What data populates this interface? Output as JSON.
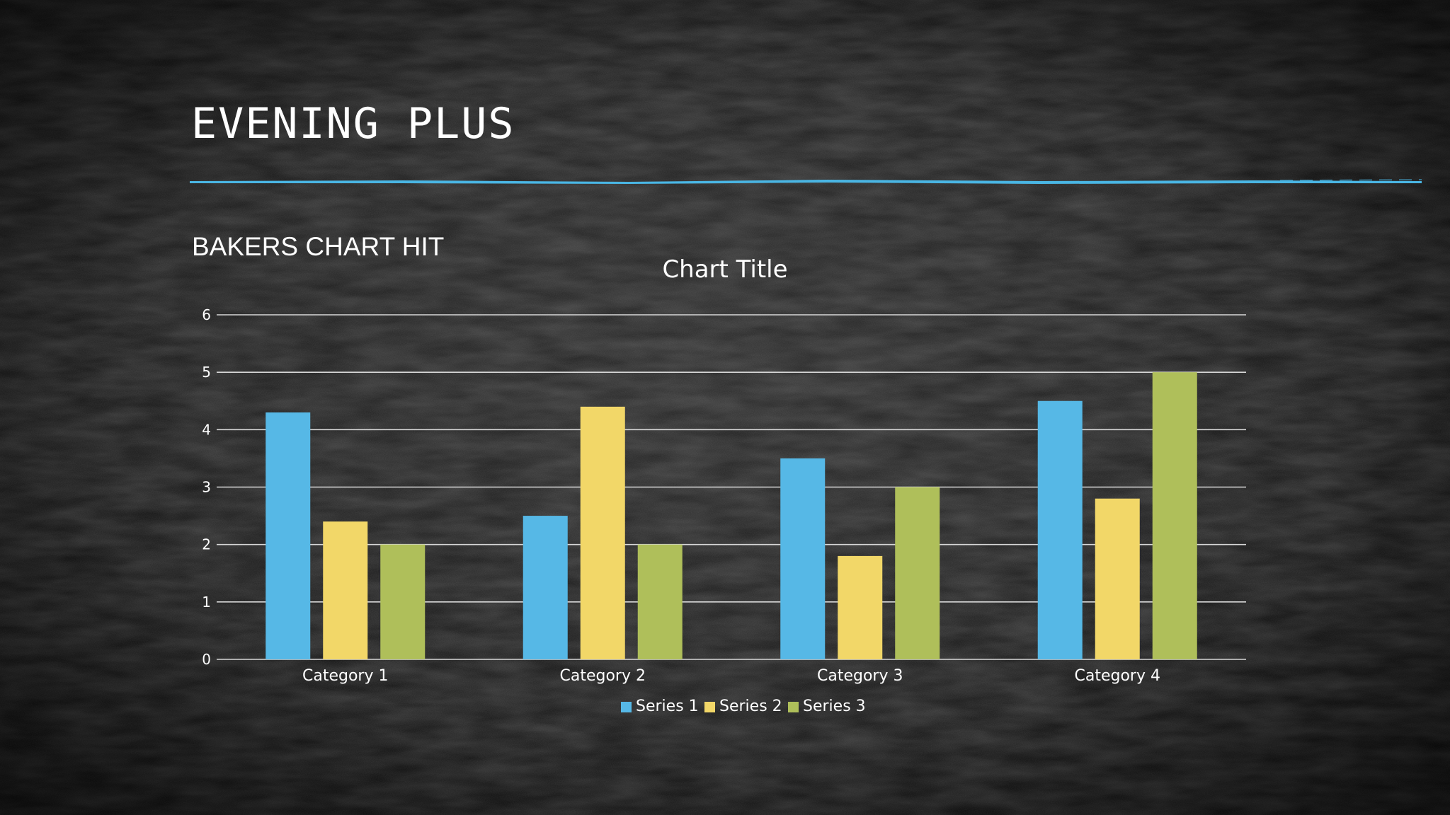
{
  "slide": {
    "title": "EVENING PLUS",
    "subtitle": "BAKERS CHART HIT",
    "accent_color": "#4ab6e4"
  },
  "chart_data": {
    "type": "bar",
    "title": "Chart Title",
    "categories": [
      "Category 1",
      "Category 2",
      "Category 3",
      "Category 4"
    ],
    "series": [
      {
        "name": "Series 1",
        "color": "#56b8e6",
        "values": [
          4.3,
          2.5,
          3.5,
          4.5
        ]
      },
      {
        "name": "Series 2",
        "color": "#f2d768",
        "values": [
          2.4,
          4.4,
          1.8,
          2.8
        ]
      },
      {
        "name": "Series 3",
        "color": "#afbf5a",
        "values": [
          2.0,
          2.0,
          3.0,
          5.0
        ]
      }
    ],
    "ylim": [
      0,
      6
    ],
    "yticks": [
      "0",
      "1",
      "2",
      "3",
      "4",
      "5",
      "6"
    ],
    "xlabel": "",
    "ylabel": "",
    "grid": true,
    "legend_position": "bottom"
  }
}
